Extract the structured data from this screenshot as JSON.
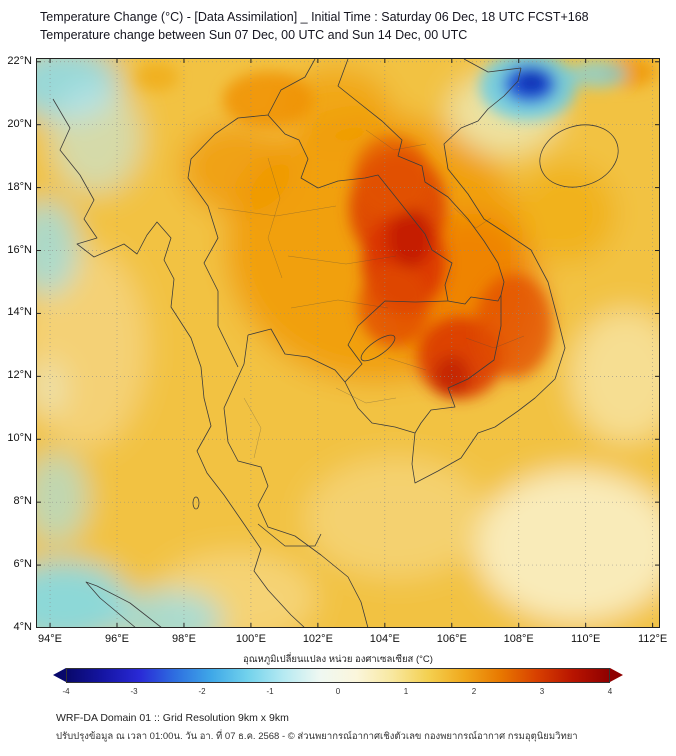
{
  "header": {
    "title_line1": "Temperature Change (°C) - [Data Assimilation] _ Initial Time : Saturday 06 Dec, 18 UTC FCST+168",
    "title_line2": "Temperature change between Sun 07 Dec, 00 UTC and Sun 14 Dec, 00 UTC"
  },
  "map": {
    "lat_ticks": [
      "22°N",
      "20°N",
      "18°N",
      "16°N",
      "14°N",
      "12°N",
      "10°N",
      "8°N",
      "6°N",
      "4°N"
    ],
    "lat_values": [
      22,
      20,
      18,
      16,
      14,
      12,
      10,
      8,
      6,
      4
    ],
    "lon_ticks": [
      "94°E",
      "96°E",
      "98°E",
      "100°E",
      "102°E",
      "104°E",
      "106°E",
      "108°E",
      "110°E",
      "112°E"
    ],
    "lon_values": [
      94,
      96,
      98,
      100,
      102,
      104,
      106,
      108,
      110,
      112
    ]
  },
  "colorbar": {
    "label": "อุณหภูมิเปลี่ยนแปลง หน่วย องศาเซลเซียส (°C)",
    "ticks": [
      "-4",
      "-3",
      "-2",
      "-1",
      "0",
      "1",
      "2",
      "3",
      "4"
    ]
  },
  "footer": {
    "line1": "WRF-DA Domain 01 :: Grid Resolution 9km x 9km",
    "line2": "ปรับปรุงข้อมูล ณ เวลา 01:00น. วัน อา. ที่ 07 ธ.ค. 2568 - © ส่วนพยากรณ์อากาศเชิงตัวเลข กองพยากรณ์อากาศ กรมอุตุนิยมวิทยา"
  },
  "chart_data": {
    "type": "heatmap",
    "title": "Temperature change (°C) between Sun 07 Dec 00 UTC and Sun 14 Dec 00 UTC",
    "units": "°C",
    "value_range": [
      -4,
      4
    ],
    "lon_range": [
      93.58,
      112.22
    ],
    "lat_range": [
      4.0,
      22.12
    ],
    "scale_colors": [
      "#08086B",
      "#1515A3",
      "#2929D6",
      "#2E6FE0",
      "#3FA8E8",
      "#72D2EC",
      "#B6EAF2",
      "#EFF8F2",
      "#FBF6DC",
      "#F8E8A0",
      "#F4D050",
      "#F0A81C",
      "#E87800",
      "#D84000",
      "#B81400",
      "#8F0000"
    ],
    "base_color": "#F2C243",
    "heat_blobs": [
      {
        "lon": 95.07,
        "lat": 12.9,
        "rlon": 1.8,
        "rlat": 3.2,
        "color": "#F6DFA0",
        "op": 0.55,
        "layer": "strong"
      },
      {
        "lon": 109.71,
        "lat": 6.61,
        "rlon": 3.0,
        "rlat": 2.4,
        "color": "#FAF0C6",
        "op": 0.9,
        "layer": "strong"
      },
      {
        "lon": 111.2,
        "lat": 12.01,
        "rlon": 1.65,
        "rlat": 2.1,
        "color": "#F8E9B4",
        "op": 0.7,
        "layer": "strong"
      },
      {
        "lon": 104.33,
        "lat": 7.5,
        "rlon": 2.7,
        "rlat": 1.9,
        "color": "#F6DE95",
        "op": 0.55,
        "layer": "strong"
      },
      {
        "lon": 99.55,
        "lat": 4.95,
        "rlon": 2.4,
        "rlat": 1.45,
        "color": "#F7E3A5",
        "op": 0.5,
        "layer": "strong"
      },
      {
        "lon": 103.74,
        "lat": 16.08,
        "rlon": 4.5,
        "rlat": 4.3,
        "color": "#F19A00",
        "op": 0.85,
        "layer": "strong"
      },
      {
        "lon": 99.55,
        "lat": 18.62,
        "rlon": 1.65,
        "rlat": 1.45,
        "color": "#F09400",
        "op": 0.7,
        "layer": "strong"
      },
      {
        "lon": 100.51,
        "lat": 20.79,
        "rlon": 1.35,
        "rlat": 0.9,
        "color": "#F08E00",
        "op": 0.8,
        "layer": "soft"
      },
      {
        "lon": 102.54,
        "lat": 20.6,
        "rlon": 1.65,
        "rlat": 1.2,
        "color": "#F09800",
        "op": 0.65,
        "layer": "strong"
      },
      {
        "lon": 109.41,
        "lat": 17.19,
        "rlon": 1.5,
        "rlat": 1.6,
        "color": "#F0A500",
        "op": 0.55,
        "layer": "strong"
      },
      {
        "lon": 111.32,
        "lat": 21.68,
        "rlon": 0.8,
        "rlat": 0.5,
        "color": "#F09000",
        "op": 0.7,
        "layer": "soft"
      },
      {
        "lon": 106.48,
        "lat": 14.49,
        "rlon": 2.25,
        "rlat": 2.7,
        "color": "#EE7500",
        "op": 0.65,
        "layer": "strong"
      },
      {
        "lon": 104.39,
        "lat": 17.35,
        "rlon": 1.45,
        "rlat": 1.85,
        "color": "#DC3D00",
        "op": 0.85,
        "layer": "soft"
      },
      {
        "lon": 104.57,
        "lat": 15.6,
        "rlon": 1.25,
        "rlat": 1.6,
        "color": "#D93000",
        "op": 0.85,
        "layer": "soft"
      },
      {
        "lon": 104.75,
        "lat": 16.4,
        "rlon": 0.65,
        "rlat": 0.95,
        "color": "#BF1A00",
        "op": 0.8,
        "layer": "soft"
      },
      {
        "lon": 104.27,
        "lat": 14.24,
        "rlon": 1.05,
        "rlat": 1.3,
        "color": "#E04800",
        "op": 0.75,
        "layer": "soft"
      },
      {
        "lon": 106.24,
        "lat": 12.58,
        "rlon": 1.25,
        "rlat": 1.3,
        "color": "#D93700",
        "op": 0.85,
        "layer": "soft"
      },
      {
        "lon": 106.0,
        "lat": 12.01,
        "rlon": 0.55,
        "rlat": 0.65,
        "color": "#BC1C00",
        "op": 0.7,
        "layer": "soft"
      },
      {
        "lon": 107.86,
        "lat": 13.6,
        "rlon": 1.15,
        "rlat": 1.65,
        "color": "#E14E00",
        "op": 0.75,
        "layer": "soft"
      },
      {
        "lon": 104.21,
        "lat": 18.37,
        "rlon": 1.15,
        "rlat": 1.3,
        "color": "#E35400",
        "op": 0.7,
        "layer": "soft"
      },
      {
        "lon": 94.42,
        "lat": 21.33,
        "rlon": 1.65,
        "rlat": 1.2,
        "color": "#8EDAE8",
        "op": 0.9,
        "layer": "strong"
      },
      {
        "lon": 95.37,
        "lat": 19.58,
        "rlon": 1.35,
        "rlat": 1.75,
        "color": "#C2E9EE",
        "op": 0.6,
        "layer": "strong"
      },
      {
        "lon": 93.88,
        "lat": 16.08,
        "rlon": 0.95,
        "rlat": 1.5,
        "color": "#9ADEE9",
        "op": 0.8,
        "layer": "strong"
      },
      {
        "lon": 94.18,
        "lat": 8.13,
        "rlon": 0.95,
        "rlat": 1.45,
        "color": "#A5E2EC",
        "op": 0.65,
        "layer": "strong"
      },
      {
        "lon": 94.42,
        "lat": 4.79,
        "rlon": 1.95,
        "rlat": 1.35,
        "color": "#82DAE8",
        "op": 0.9,
        "layer": "strong"
      },
      {
        "lon": 97.52,
        "lat": 4.25,
        "rlon": 1.65,
        "rlat": 0.95,
        "color": "#97DEE9",
        "op": 0.8,
        "layer": "strong"
      },
      {
        "lon": 107.56,
        "lat": 20.37,
        "rlon": 1.65,
        "rlat": 1.3,
        "color": "#EAF2D2",
        "op": 0.65,
        "layer": "strong"
      },
      {
        "lon": 108.28,
        "lat": 21.23,
        "rlon": 1.45,
        "rlat": 1.1,
        "color": "#66CBE8",
        "op": 0.85,
        "layer": "soft"
      },
      {
        "lon": 108.33,
        "lat": 21.29,
        "rlon": 0.78,
        "rlat": 0.6,
        "color": "#1E4FD8",
        "op": 0.95,
        "layer": "soft"
      },
      {
        "lon": 108.39,
        "lat": 21.36,
        "rlon": 0.42,
        "rlat": 0.34,
        "color": "#0F2FB0",
        "op": 0.9,
        "layer": "soft"
      },
      {
        "lon": 110.37,
        "lat": 21.61,
        "rlon": 0.85,
        "rlat": 0.45,
        "color": "#7AD2E8",
        "op": 0.7,
        "layer": "soft"
      },
      {
        "lon": 97.19,
        "lat": 21.52,
        "rlon": 0.65,
        "rlat": 0.45,
        "color": "#F0A000",
        "op": 0.5,
        "layer": "soft"
      },
      {
        "lon": 93.9,
        "lat": 11.6,
        "rlon": 0.6,
        "rlat": 0.9,
        "color": "#E8F0D8",
        "op": 0.5,
        "layer": "strong"
      }
    ]
  }
}
